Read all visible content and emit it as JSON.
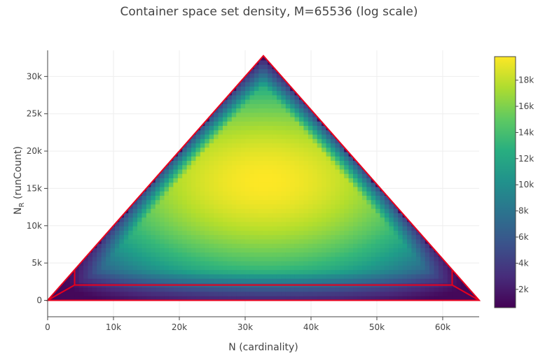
{
  "chart_data": {
    "type": "heatmap",
    "title": "Container space set density, M=65536 (log scale)",
    "xlabel": "N (cardinality)",
    "ylabel_main": "N",
    "ylabel_sub": "R",
    "ylabel_rest": " (runCount)",
    "xlim": [
      0,
      65536
    ],
    "ylim": [
      -2200,
      33500
    ],
    "x_ticks": [
      {
        "value": 0,
        "label": "0"
      },
      {
        "value": 10000,
        "label": "10k"
      },
      {
        "value": 20000,
        "label": "20k"
      },
      {
        "value": 30000,
        "label": "30k"
      },
      {
        "value": 40000,
        "label": "40k"
      },
      {
        "value": 50000,
        "label": "50k"
      },
      {
        "value": 60000,
        "label": "60k"
      }
    ],
    "y_ticks": [
      {
        "value": 0,
        "label": "0"
      },
      {
        "value": 5000,
        "label": "5k"
      },
      {
        "value": 10000,
        "label": "10k"
      },
      {
        "value": 15000,
        "label": "15k"
      },
      {
        "value": 20000,
        "label": "20k"
      },
      {
        "value": 25000,
        "label": "25k"
      },
      {
        "value": 30000,
        "label": "30k"
      }
    ],
    "density_region": {
      "apex": [
        32768,
        32768
      ],
      "base_left": [
        0,
        0
      ],
      "base_right": [
        65536,
        0
      ],
      "peak": [
        33000,
        16000
      ],
      "max_value": 19800,
      "min_value": 600
    },
    "boundary_lines": {
      "color": "#e8001c",
      "outer_triangle": [
        [
          0,
          0
        ],
        [
          32768,
          32768
        ],
        [
          65536,
          0
        ]
      ],
      "inner_band": [
        [
          0,
          0
        ],
        [
          4096,
          2048
        ],
        [
          61440,
          2048
        ],
        [
          65536,
          0
        ]
      ],
      "left_connector": [
        [
          4096,
          2048
        ],
        [
          4096,
          4096
        ]
      ],
      "right_connector": [
        [
          61440,
          2048
        ],
        [
          61440,
          4096
        ]
      ]
    },
    "colorbar": {
      "colorscale": "viridis",
      "range": [
        600,
        19800
      ],
      "ticks": [
        {
          "value": 2000,
          "label": "2k"
        },
        {
          "value": 4000,
          "label": "4k"
        },
        {
          "value": 6000,
          "label": "6k"
        },
        {
          "value": 8000,
          "label": "8k"
        },
        {
          "value": 10000,
          "label": "10k"
        },
        {
          "value": 12000,
          "label": "12k"
        },
        {
          "value": 14000,
          "label": "14k"
        },
        {
          "value": 16000,
          "label": "16k"
        },
        {
          "value": 18000,
          "label": "18k"
        }
      ]
    },
    "grid": true,
    "legend": "none"
  }
}
